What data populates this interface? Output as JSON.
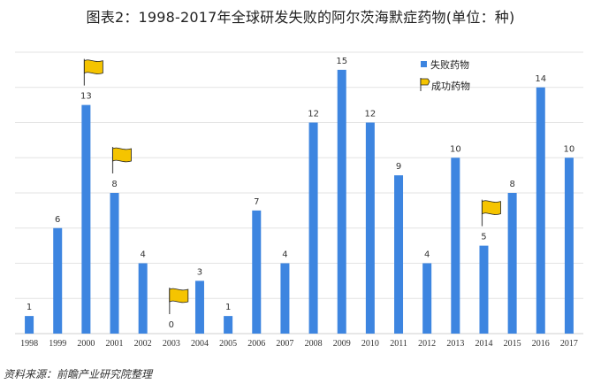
{
  "page": {
    "title": "图表2：1998-2017年全球研发失败的阿尔茨海默症药物(单位：种)",
    "source": "资料来源：前瞻产业研究院整理"
  },
  "chart_data": {
    "type": "bar",
    "title": "图表2：1998-2017年全球研发失败的阿尔茨海默症药物(单位：种)",
    "xlabel": "",
    "ylabel": "",
    "categories": [
      "1998",
      "1999",
      "2000",
      "2001",
      "2002",
      "2003",
      "2004",
      "2005",
      "2006",
      "2007",
      "2008",
      "2009",
      "2010",
      "2011",
      "2012",
      "2013",
      "2014",
      "2015",
      "2016",
      "2017"
    ],
    "series": [
      {
        "name": "失败药物",
        "color": "#3d85e0",
        "values": [
          1,
          6,
          13,
          8,
          4,
          0,
          3,
          1,
          7,
          4,
          12,
          15,
          12,
          9,
          4,
          10,
          5,
          8,
          14,
          10
        ]
      }
    ],
    "success_markers": {
      "name": "成功药物",
      "color": "#f5c400",
      "years": [
        "2000",
        "2001",
        "2003",
        "2014"
      ]
    },
    "ylim": [
      0,
      16
    ],
    "grid": true,
    "legend": "top-right"
  }
}
